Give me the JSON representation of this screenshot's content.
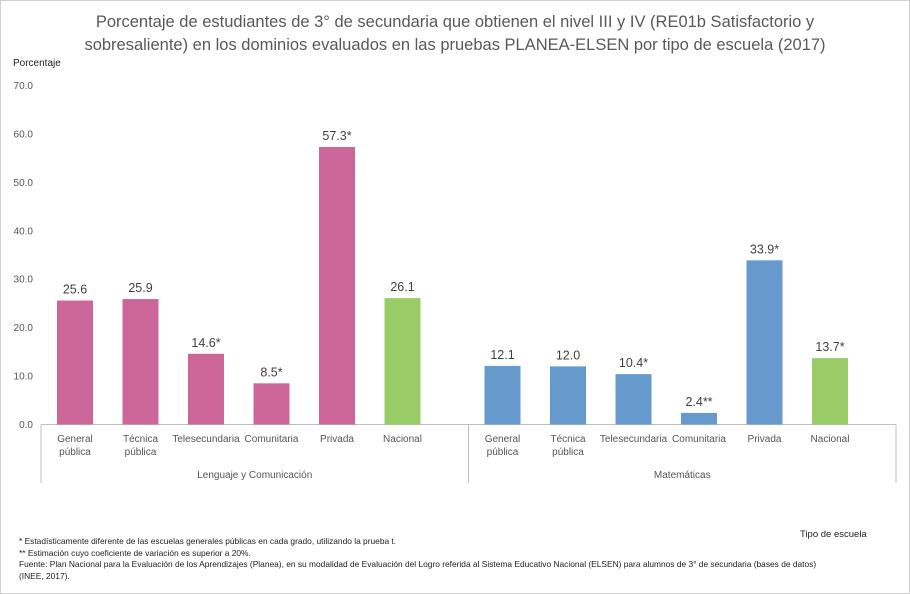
{
  "chart_data": {
    "type": "bar",
    "title_line1": "Porcentaje de estudiantes de 3° de secundaria que obtienen el nivel III y IV  (RE01b Satisfactorio y",
    "title_line2": "sobresaliente) en los dominios evaluados en las pruebas PLANEA-ELSEN por tipo de escuela (2017)",
    "ylabel": "Porcentaje",
    "xlabel": "Tipo de escuela",
    "ylim": [
      0,
      70
    ],
    "yticks": [
      "0.0",
      "10.0",
      "20.0",
      "30.0",
      "40.0",
      "50.0",
      "60.0",
      "70.0"
    ],
    "grid": false,
    "colors": {
      "school": "#cc6699",
      "national_lang": "#99cc66",
      "math": "#6699cc",
      "national_math": "#99cc66"
    },
    "groups": [
      {
        "name": "Lenguaje y Comunicación",
        "categories": [
          [
            "General",
            "pública"
          ],
          [
            "Técnica",
            "pública"
          ],
          [
            "Telesecundaria"
          ],
          [
            "Comunitaria"
          ],
          [
            "Privada"
          ],
          [
            "Nacional"
          ]
        ],
        "values": [
          25.6,
          25.9,
          14.6,
          8.5,
          57.3,
          26.1
        ],
        "labels": [
          "25.6",
          "25.9",
          "14.6*",
          "8.5*",
          "57.3*",
          "26.1"
        ]
      },
      {
        "name": "Matemáticas",
        "categories": [
          [
            "General",
            "pública"
          ],
          [
            "Técnica",
            "pública"
          ],
          [
            "Telesecundaria"
          ],
          [
            "Comunitaria"
          ],
          [
            "Privada"
          ],
          [
            "Nacional"
          ]
        ],
        "values": [
          12.1,
          12.0,
          10.4,
          2.4,
          33.9,
          13.7
        ],
        "labels": [
          "12.1",
          "12.0",
          "10.4*",
          "2.4**",
          "33.9*",
          "13.7*"
        ]
      }
    ]
  },
  "notes": {
    "n1": "* Estadísticamente diferente de las escuelas generales públicas en cada grado, utilizando la prueba t.",
    "n2": "** Estimación cuyo coeficiente de variación es superior a 20%.",
    "n3": "Fuente: Plan Nacional para la Evaluación de los Aprendizajes (Planea), en su modalidad de Evaluación del Logro referida al Sistema Educativo Nacional (ELSEN) para alumnos de 3° de secundaria  (bases de datos)",
    "n4": "(INEE, 2017)."
  }
}
